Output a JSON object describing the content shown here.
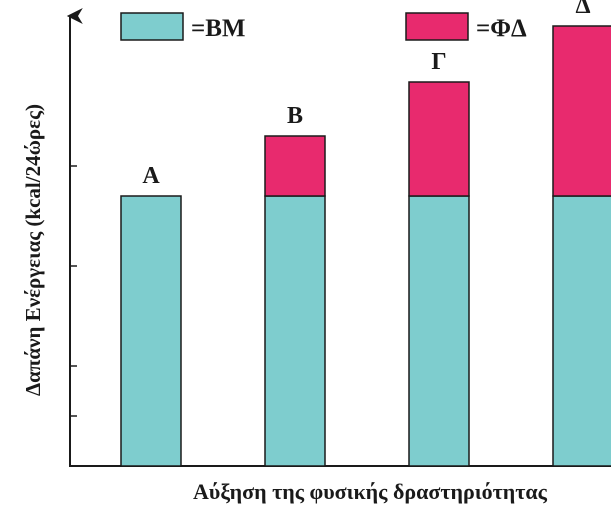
{
  "chart_data": {
    "type": "bar",
    "stacked": true,
    "categories": [
      "Α",
      "Β",
      "Γ",
      "Δ"
    ],
    "series": [
      {
        "name": "ΒΜ",
        "color": "#7ecdce",
        "values": [
          2.7,
          2.7,
          2.7,
          2.7
        ]
      },
      {
        "name": "ΦΔ",
        "color": "#e82a6e",
        "values": [
          0,
          0.6,
          1.14,
          1.7
        ]
      }
    ],
    "legend_prefix": "=",
    "ylabel": "Δαπάνη Ενέργειας (kcal/24ώρες)",
    "xlabel": "Αύξηση της φυσικής δραστηριότητας",
    "ylim": [
      0,
      4.5
    ],
    "yticks": [
      0.5,
      1.0,
      2.0,
      3.0
    ],
    "show_tick_labels": false,
    "grid": false,
    "legend_position": "top"
  }
}
